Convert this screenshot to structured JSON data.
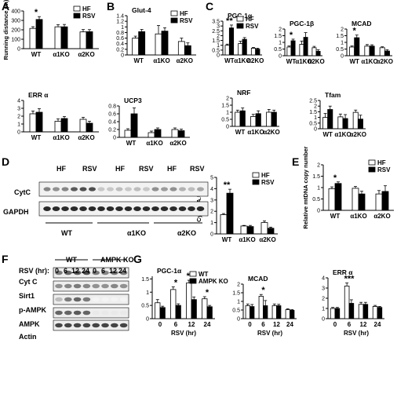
{
  "panels": [
    {
      "id": "A",
      "label": "A"
    },
    {
      "id": "B",
      "label": "B"
    },
    {
      "id": "C",
      "label": "C"
    },
    {
      "id": "D",
      "label": "D"
    },
    {
      "id": "E",
      "label": "E"
    },
    {
      "id": "F",
      "label": "F"
    },
    {
      "id": "G",
      "label": "G"
    }
  ],
  "legend_hf_rsv": {
    "hf": "HF",
    "rsv": "RSV"
  },
  "legend_wt_ampk": {
    "wt": "WT",
    "ampk": "AMPK KO"
  },
  "colors": {
    "hf": "#ffffff",
    "rsv": "#000000",
    "stroke": "#000000"
  },
  "chart_data": [
    {
      "id": "A-running",
      "type": "bar",
      "title": "",
      "ylabel": "Running distance (m)",
      "ylim": [
        0,
        400
      ],
      "yticks": [
        0,
        100,
        200,
        300,
        400
      ],
      "categories": [
        "WT",
        "α1KO",
        "α2KO"
      ],
      "series": [
        {
          "name": "HF",
          "values": [
            215,
            232,
            178
          ],
          "errors": [
            18,
            22,
            25
          ]
        },
        {
          "name": "RSV",
          "values": [
            310,
            232,
            180
          ],
          "errors": [
            30,
            25,
            22
          ]
        }
      ],
      "annotations": [
        {
          "group": 0,
          "text": "*"
        }
      ],
      "legend": true
    },
    {
      "id": "B-glut4",
      "type": "bar",
      "title": "Glut-4",
      "ylabel": "",
      "ylim": [
        0,
        1.4
      ],
      "yticks": [
        0,
        0.2,
        0.4,
        0.6,
        0.8,
        1,
        1.2,
        1.4
      ],
      "categories": [
        "WT",
        "α1KO",
        "α2KO"
      ],
      "series": [
        {
          "name": "HF",
          "values": [
            0.6,
            0.75,
            0.48
          ],
          "errors": [
            0.07,
            0.3,
            0.12
          ]
        },
        {
          "name": "RSV",
          "values": [
            0.83,
            0.85,
            0.33
          ],
          "errors": [
            0.08,
            0.12,
            0.1
          ]
        }
      ],
      "annotations": [],
      "legend": true
    },
    {
      "id": "C-pgc1a",
      "type": "bar",
      "title": "PGC-1α",
      "ylabel": "",
      "ylim": [
        0,
        3.5
      ],
      "yticks": [
        0,
        0.5,
        1,
        1.5,
        2,
        2.5,
        3,
        3.5
      ],
      "categories": [
        "WT",
        "α1KO",
        "α2KO"
      ],
      "series": [
        {
          "name": "HF",
          "values": [
            1.0,
            1.18,
            0.7
          ],
          "errors": [
            0.12,
            0.25,
            0.08
          ]
        },
        {
          "name": "RSV",
          "values": [
            2.8,
            1.62,
            0.6
          ],
          "errors": [
            0.3,
            0.18,
            0.1
          ]
        }
      ],
      "annotations": [
        {
          "group": 0,
          "text": "**"
        }
      ],
      "legend": true
    },
    {
      "id": "C-pgc1b",
      "type": "bar",
      "title": "PGC-1β",
      "ylabel": "",
      "ylim": [
        0,
        2
      ],
      "yticks": [
        0,
        0.5,
        1,
        1.5,
        2
      ],
      "categories": [
        "WT",
        "α1KO",
        "α2KO"
      ],
      "series": [
        {
          "name": "HF",
          "values": [
            0.65,
            0.85,
            0.6
          ],
          "errors": [
            0.08,
            0.25,
            0.1
          ]
        },
        {
          "name": "RSV",
          "values": [
            1.12,
            1.38,
            0.33
          ],
          "errors": [
            0.12,
            0.35,
            0.12
          ]
        }
      ],
      "annotations": [
        {
          "group": 0,
          "text": "*"
        }
      ],
      "legend": false
    },
    {
      "id": "C-mcad",
      "type": "bar",
      "title": "MCAD",
      "ylabel": "",
      "ylim": [
        0,
        2
      ],
      "yticks": [
        0,
        0.5,
        1,
        1.5,
        2
      ],
      "categories": [
        "WT",
        "α1KO",
        "α2KO"
      ],
      "series": [
        {
          "name": "HF",
          "values": [
            0.65,
            0.72,
            0.6
          ],
          "errors": [
            0.08,
            0.12,
            0.07
          ]
        },
        {
          "name": "RSV",
          "values": [
            1.35,
            0.72,
            0.35
          ],
          "errors": [
            0.2,
            0.1,
            0.1
          ]
        }
      ],
      "annotations": [
        {
          "group": 0,
          "text": "*"
        }
      ],
      "legend": false
    },
    {
      "id": "C-erra",
      "type": "bar",
      "title": "ERR α",
      "ylabel": "",
      "ylim": [
        0,
        4
      ],
      "yticks": [
        0,
        1,
        2,
        3,
        4
      ],
      "categories": [
        "WT",
        "α1KO",
        "α2KO"
      ],
      "series": [
        {
          "name": "HF",
          "values": [
            2.3,
            1.35,
            1.6
          ],
          "errors": [
            0.35,
            0.3,
            0.25
          ]
        },
        {
          "name": "RSV",
          "values": [
            2.5,
            1.7,
            1.1
          ],
          "errors": [
            0.45,
            0.25,
            0.25
          ]
        }
      ],
      "annotations": [],
      "legend": false
    },
    {
      "id": "C-ucp3",
      "type": "bar",
      "title": "UCP3",
      "ylabel": "",
      "ylim": [
        0,
        0.8
      ],
      "yticks": [
        0,
        0.2,
        0.4,
        0.6,
        0.8
      ],
      "categories": [
        "WT",
        "α1KO",
        "α2KO"
      ],
      "series": [
        {
          "name": "HF",
          "values": [
            0.18,
            0.12,
            0.2
          ],
          "errors": [
            0.04,
            0.04,
            0.04
          ]
        },
        {
          "name": "RSV",
          "values": [
            0.6,
            0.2,
            0.17
          ],
          "errors": [
            0.15,
            0.04,
            0.04
          ]
        }
      ],
      "annotations": [],
      "legend": false
    },
    {
      "id": "C-nrf",
      "type": "bar",
      "title": "NRF",
      "ylabel": "",
      "ylim": [
        0,
        2
      ],
      "yticks": [
        0,
        0.5,
        1,
        1.5,
        2
      ],
      "categories": [
        "WT",
        "α1KO",
        "α2KO"
      ],
      "series": [
        {
          "name": "HF",
          "values": [
            1.0,
            0.7,
            1.0
          ],
          "errors": [
            0.15,
            0.15,
            0.2
          ]
        },
        {
          "name": "RSV",
          "values": [
            1.1,
            0.9,
            1.0
          ],
          "errors": [
            0.2,
            0.2,
            0.15
          ]
        }
      ],
      "annotations": [],
      "legend": false
    },
    {
      "id": "C-tfam",
      "type": "bar",
      "title": "Tfam",
      "ylabel": "",
      "ylim": [
        0,
        2.5
      ],
      "yticks": [
        0,
        0.5,
        1,
        1.5,
        2,
        2.5
      ],
      "categories": [
        "WT",
        "α1KO",
        "α2KO"
      ],
      "series": [
        {
          "name": "HF",
          "values": [
            1.0,
            1.05,
            1.45
          ],
          "errors": [
            0.35,
            0.25,
            0.2
          ]
        },
        {
          "name": "RSV",
          "values": [
            1.7,
            0.9,
            0.85
          ],
          "errors": [
            0.3,
            0.35,
            0.35
          ]
        }
      ],
      "annotations": [],
      "legend": false
    },
    {
      "id": "D-cytc",
      "type": "bar",
      "title": "",
      "ylabel": "Cyt C (A.U.)",
      "ylim": [
        0,
        5
      ],
      "yticks": [
        0,
        1,
        2,
        3,
        4,
        5
      ],
      "categories": [
        "WT",
        "α1KO",
        "α2KO"
      ],
      "series": [
        {
          "name": "HF",
          "values": [
            1.7,
            0.7,
            1.0
          ],
          "errors": [
            0.1,
            0.05,
            0.15
          ]
        },
        {
          "name": "RSV",
          "values": [
            3.6,
            0.65,
            0.5
          ],
          "errors": [
            0.35,
            0.1,
            0.1
          ]
        }
      ],
      "annotations": [
        {
          "group": 0,
          "text": "**"
        }
      ],
      "legend": true
    },
    {
      "id": "E-mtdna",
      "type": "bar",
      "title": "",
      "ylabel": "Relative mtDNA copy number",
      "ylim": [
        0,
        2
      ],
      "yticks": [
        0,
        0.5,
        1,
        1.5,
        2
      ],
      "categories": [
        "WT",
        "α1KO",
        "α2KO"
      ],
      "series": [
        {
          "name": "HF",
          "values": [
            0.95,
            0.97,
            0.72
          ],
          "errors": [
            0.08,
            0.08,
            0.15
          ]
        },
        {
          "name": "RSV",
          "values": [
            1.18,
            0.72,
            0.83
          ],
          "errors": [
            0.07,
            0.12,
            0.25
          ]
        }
      ],
      "annotations": [
        {
          "group": 0,
          "text": "*"
        }
      ],
      "legend": true
    },
    {
      "id": "G-pgc1a",
      "type": "bar",
      "title": "PGC-1α",
      "ylabel": "",
      "ylim": [
        0,
        1.6
      ],
      "yticks": [
        0,
        0.5,
        1,
        1.5
      ],
      "categories": [
        "0",
        "6",
        "12",
        "24"
      ],
      "xlabel": "RSV (hr)",
      "series": [
        {
          "name": "WT",
          "values": [
            0.6,
            1.1,
            1.35,
            0.75
          ],
          "errors": [
            0.12,
            0.1,
            0.1,
            0.08
          ]
        },
        {
          "name": "AMPK KO",
          "values": [
            0.42,
            0.5,
            0.72,
            0.45
          ],
          "errors": [
            0.05,
            0.06,
            0.1,
            0.05
          ]
        }
      ],
      "annotations": [
        {
          "group": 1,
          "text": "*"
        },
        {
          "group": 2,
          "text": "***"
        },
        {
          "group": 3,
          "text": "*"
        }
      ],
      "legend": true
    },
    {
      "id": "G-mcad",
      "type": "bar",
      "title": "MCAD",
      "ylabel": "",
      "ylim": [
        0,
        2
      ],
      "yticks": [
        0,
        0.5,
        1,
        1.5,
        2
      ],
      "categories": [
        "0",
        "6",
        "12",
        "24"
      ],
      "xlabel": "RSV (hr)",
      "series": [
        {
          "name": "WT",
          "values": [
            0.75,
            1.3,
            0.75,
            0.52
          ],
          "errors": [
            0.1,
            0.1,
            0.1,
            0.05
          ]
        },
        {
          "name": "AMPK KO",
          "values": [
            0.7,
            0.75,
            0.75,
            0.48
          ],
          "errors": [
            0.12,
            0.3,
            0.08,
            0.05
          ]
        }
      ],
      "annotations": [
        {
          "group": 1,
          "text": "*"
        }
      ],
      "legend": false
    },
    {
      "id": "G-erra",
      "type": "bar",
      "title": "ERR α",
      "ylabel": "",
      "ylim": [
        0,
        4
      ],
      "yticks": [
        0,
        1,
        2,
        3,
        4
      ],
      "categories": [
        "0",
        "6",
        "12",
        "24"
      ],
      "xlabel": "RSV (hr)",
      "series": [
        {
          "name": "WT",
          "values": [
            1.0,
            3.2,
            1.4,
            1.2
          ],
          "errors": [
            0.1,
            0.3,
            0.2,
            0.1
          ]
        },
        {
          "name": "AMPK KO",
          "values": [
            1.0,
            1.5,
            1.4,
            1.1
          ],
          "errors": [
            0.1,
            0.35,
            0.2,
            0.1
          ]
        }
      ],
      "annotations": [
        {
          "group": 1,
          "text": "***"
        }
      ],
      "legend": false
    }
  ],
  "blot_D": {
    "groups": [
      "HF",
      "RSV",
      "HF",
      "RSV",
      "HF",
      "RSV"
    ],
    "genotypes": [
      "WT",
      "α1KO",
      "α2KO"
    ],
    "rows": [
      "CytC",
      "GAPDH"
    ]
  },
  "blot_F": {
    "condition_label": "RSV (hr):",
    "genotypes": [
      "WT",
      "AMPK KO"
    ],
    "timepoints": [
      "0",
      "6",
      "12",
      "24",
      "0",
      "6",
      "12",
      "24"
    ],
    "rows": [
      "Cyt C",
      "Sirt1",
      "p-AMPK",
      "AMPK",
      "Actin"
    ]
  }
}
